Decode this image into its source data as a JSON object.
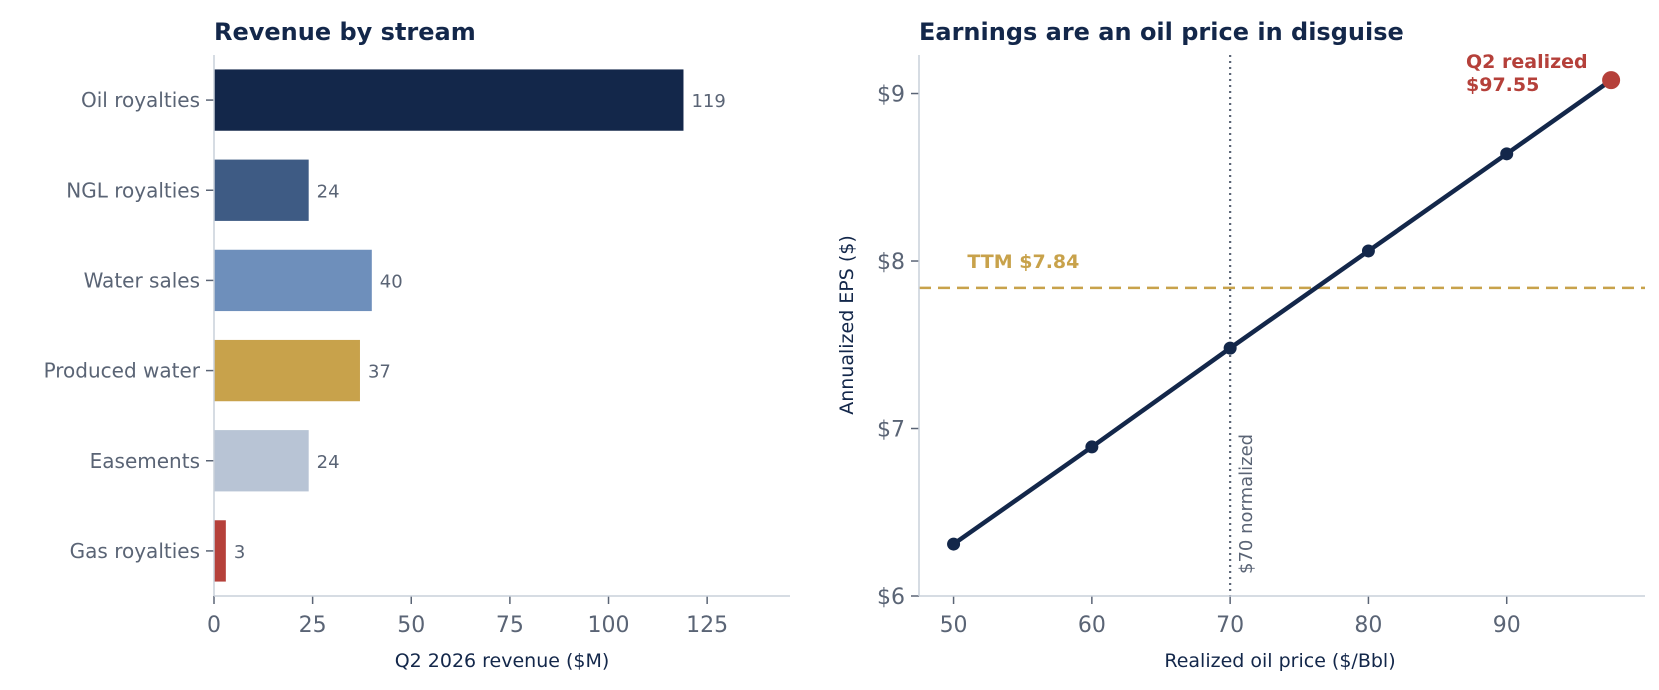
{
  "chart_data": [
    {
      "type": "bar",
      "orientation": "horizontal",
      "title": "Revenue by stream",
      "xlabel": "Q2 2026 revenue ($M)",
      "ylabel": "",
      "xlim": [
        0,
        146
      ],
      "xticks": [
        0,
        25,
        50,
        75,
        100,
        125
      ],
      "categories": [
        "Oil royalties",
        "NGL royalties",
        "Water sales",
        "Produced water",
        "Easements",
        "Gas royalties"
      ],
      "values": [
        119,
        24,
        40,
        37,
        24,
        3
      ],
      "value_labels": [
        "119",
        "24",
        "40",
        "37",
        "24",
        "3"
      ],
      "colors": [
        "#13274a",
        "#3e5b84",
        "#6e8fbb",
        "#c8a24b",
        "#b8c4d5",
        "#b5403a"
      ],
      "grid": false
    },
    {
      "type": "line",
      "title": "Earnings are an oil price in disguise",
      "xlabel": "Realized oil price ($/Bbl)",
      "ylabel": "Annualized EPS ($)",
      "xlim": [
        47.5,
        100
      ],
      "ylim": [
        6,
        9.23
      ],
      "xticks": [
        50,
        60,
        70,
        80,
        90
      ],
      "yticks": [
        6,
        7,
        8,
        9
      ],
      "ytick_labels": [
        "$6",
        "$7",
        "$8",
        "$9"
      ],
      "x": [
        50,
        60,
        70,
        80,
        90
      ],
      "y": [
        6.31,
        6.89,
        7.48,
        8.06,
        8.64
      ],
      "line_end": {
        "x": 97.55,
        "y": 9.08
      },
      "line_color": "#13274a",
      "highlight_point": {
        "x": 97.55,
        "y": 9.08,
        "label_line1": "Q2 realized",
        "label_line2": "$97.55",
        "color": "#b5403a"
      },
      "hline": {
        "y": 7.84,
        "label": "TTM $7.84",
        "color": "#c8a24b",
        "style": "dashed"
      },
      "vline": {
        "x": 70,
        "label": "$70 normalized",
        "color": "#5a6475",
        "style": "dotted"
      },
      "grid": false
    }
  ]
}
